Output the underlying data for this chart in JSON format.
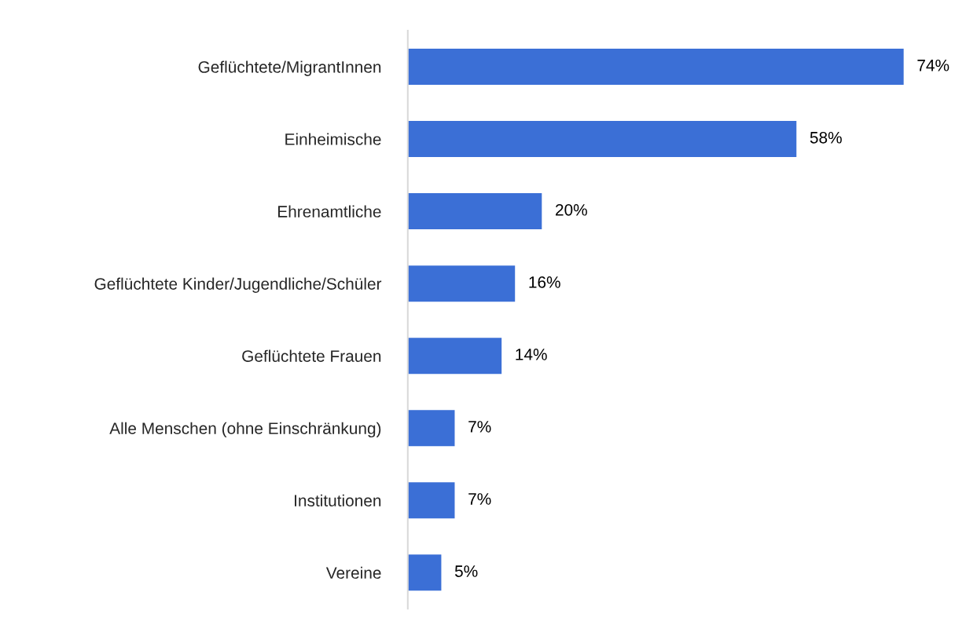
{
  "chart_data": {
    "type": "bar",
    "orientation": "horizontal",
    "categories": [
      "Geflüchtete/MigrantInnen",
      "Einheimische",
      "Ehrenamtliche",
      "Geflüchtete Kinder/Jugendliche/Schüler",
      "Geflüchtete Frauen",
      "Alle Menschen (ohne Einschränkung)",
      "Institutionen",
      "Vereine"
    ],
    "values": [
      74,
      58,
      20,
      16,
      14,
      7,
      7,
      5
    ],
    "value_labels": [
      "74%",
      "58%",
      "20%",
      "16%",
      "14%",
      "7%",
      "7%",
      "5%"
    ],
    "color": "#3b6fd6",
    "grid": false,
    "legend": false
  }
}
